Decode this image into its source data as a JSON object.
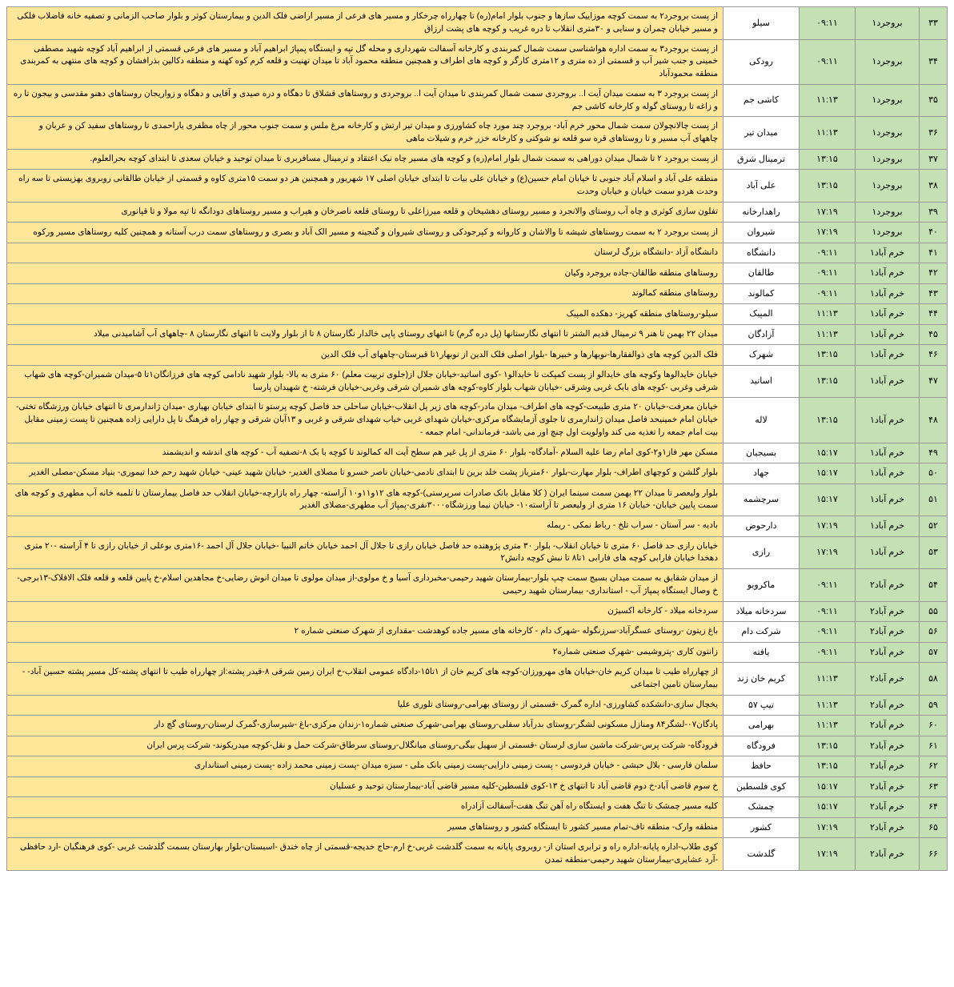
{
  "colors": {
    "green_bg": "#c5e0b4",
    "yellow_bg": "#ffe699",
    "white_bg": "#ffffff",
    "border": "#999999"
  },
  "rows": [
    {
      "num": "۳۳",
      "region": "بروجرد۱",
      "time": "۰۹:۱۱",
      "area": "سیلو",
      "desc": "از پست بروجرد۲ به سمت کوچه موزاییک سازها و جنوب بلوار امام(ره) تا چهارراه چرخکار و مسیر های فرعی از مسیر اراضی فلک الدین  و بیمارستان کوثر و بلوار صاحب الزمانی  و تصفیه خانه فاضلاب فلکی و مسیر خیابان چمران و سنایی و ۳۰متری انقلاب تا دره غریب و کوچه های پشت ارزاق"
    },
    {
      "num": "۳۴",
      "region": "بروجرد۱",
      "time": "۰۹:۱۱",
      "area": "رودکی",
      "desc": "از پست بروجرد۳ به سمت اداره هواشناسی سمت شمال کمربندی و کارخانه آسفالت شهرداری و محله گل تپه و ایستگاه پمپاژ ابراهیم آباد و مسیر های فرعی قسمتی از ابراهیم آباد کوچه شهید مصطفی خمینی و جنب شیر آب و قسمتی از ده متری و ۱۲متری کارگر و کوچه های اطراف و همچنین منطقه محمود آباد تا میدان تهنیت و قلعه کرم کوه کهنه و منطقه دکالین بذرافشان و کوچه های منتهی به کمربندی منطقه محمودآباد"
    },
    {
      "num": "۳۵",
      "region": "بروجرد۱",
      "time": "۱۱:۱۳",
      "area": "کاشی جم",
      "desc": "از پست بروجرد ۳ به سمت میدان آیت ا.. بروجردی سمت شمال کمربندی تا میدان آیت ا.. بروجردی و روستاهای قشلاق تا دهگاه و دره صیدی و آقایی و دهگاه و زواریجان  روستاهای دهنو مقدسی و بیجون تا ره و زاغه تا روستای گوله و کارخانه کاشی جم"
    },
    {
      "num": "۳۶",
      "region": "بروجرد۱",
      "time": "۱۱:۱۳",
      "area": "میدان تیر",
      "desc": "از پست چالانچولان سمت شمال محور خرم آباد- بروجرد چند مورد چاه کشاورزی و میدان تیر ارتش و کارخانه مرغ ملس و سمت جنوب محور از چاه مظفری یاراحمدی تا روستاهای سفید کن و عربان و چاههای آب مسیر و تا روستاهای قره سو قلعه نو شوکتی و کارخانه خزر خرم و شیلات ماهی"
    },
    {
      "num": "۳۷",
      "region": "بروجرد۱",
      "time": "۱۳:۱۵",
      "area": "ترمینال شرق",
      "desc": "از پست بروجرد ۲ تا شمال میدان دوراهی به سمت شمال بلوار امام(ره) و کوچه های مسیر چاه نیک اعتقاد و ترمینال مسافربری تا میدان توحید  و خیابان سعدی تا ابتدای کوچه بحرالعلوم."
    },
    {
      "num": "۳۸",
      "region": "بروجرد۱",
      "time": "۱۳:۱۵",
      "area": "علی آباد",
      "desc": "منطقه علی آباد و اسلام آباد جنوبی تا خیابان امام حسین(ع) و خیابان علی بیات  تا ابتدای خیابان اصلی ۱۷ شهریور و همچنین هر دو سمت ۱۵متری کاوه و قسمتی از خیابان طالقانی روبروی بهزیستی  تا سه راه وحدت هردو سمت خیابان و خیابان وحدت"
    },
    {
      "num": "۳۹",
      "region": "بروجرد۱",
      "time": "۱۷:۱۹",
      "area": "راهدارخانه",
      "desc": "تفلون سازی کوثری و چاه آب روستای والانجرد و مسیر روستای دهشیخان و قلعه میرزاعلی  تا روستای قلعه ناصرخان و هیراب و مسیر روستاهای دودانگه تا تپه مولا و تا قپانوری"
    },
    {
      "num": "۴۰",
      "region": "بروجرد۱",
      "time": "۱۷:۱۹",
      "area": "شیروان",
      "desc": "از پست بروجرد ۲ به سمت روستاهای شیشه تا والاشان و کاروانه و کپرجودکی و روستای شیروان و گنجینه و مسیر الک آباد و بصری و روستاهای سمت درب آستانه و همچنین کلیه روستاهای مسیر ورکوه"
    },
    {
      "num": "۴۱",
      "region": "خرم آباد۱",
      "time": "۰۹:۱۱",
      "area": "دانشگاه",
      "desc": "دانشگاه آزاد -دانشگاه بزرگ لرستان"
    },
    {
      "num": "۴۲",
      "region": "خرم آباد۱",
      "time": "۰۹:۱۱",
      "area": "طالقان",
      "desc": "روستاهای منطقه طالقان-جاده بروجرد وکیان"
    },
    {
      "num": "۴۳",
      "region": "خرم آباد۱",
      "time": "۰۹:۱۱",
      "area": "کمالوند",
      "desc": "روستاهای منطقه کمالوند"
    },
    {
      "num": "۴۴",
      "region": "خرم آباد۱",
      "time": "۱۱:۱۳",
      "area": "المپیک",
      "desc": "سیلو-روستاهای منطقه کهریز- دهکده المپیک"
    },
    {
      "num": "۴۵",
      "region": "خرم آباد۱",
      "time": "۱۱:۱۳",
      "area": "آزادگان",
      "desc": "میدان ۲۲ بهمن تا هنر ۹ ترمینال قدیم الشتر تا انتهای نگارستانها (پل دره گرم) تا انتهای روستای پاپی خالدار نگارستان ۸ تا از بلوار ولایت تا انتهای نگارستان ۸  -چاههای آب آشامیدنی میلاد"
    },
    {
      "num": "۴۶",
      "region": "خرم آباد۱",
      "time": "۱۳:۱۵",
      "area": "شهرک",
      "desc": "فلک الدین کوچه های ذوالفقارها-نوبهارها و خبیرها -بلوار اصلی فلک الدین از نوبهار۱تا قبرستان-چاههای آب فلک الدین"
    },
    {
      "num": "۴۷",
      "region": "خرم آباد۱",
      "time": "۱۳:۱۵",
      "area": "اساتید",
      "desc": "خیابان خایدالوها وکوچه های خایدالو از پست کمپکت تا خایدالو۱ -کوی اساتید-خیابان جلال از(جلوی تربیت معلم) ۶۰ متری به بالا- بلوار شهید نادامی کوچه های فرزانگان۱تا ۵-میدان شمیران-کوچه های شهاب شرقی وغربی -کوچه های بابک غربی وشرقی -خیابان شهاب بلوار کاوه-کوچه های شمیران شرقی وغربی-خیابان فرشته- خ شهیدان پارسا"
    },
    {
      "num": "۴۸",
      "region": "خرم آباد۱",
      "time": "۱۳:۱۵",
      "area": "لاله",
      "desc": "خیابان معرفت-خیابان ۲۰ متری طبیعت-کوچه های اطراف- میدان مادر-کوچه های زیر پل انقلاب-خیابان ساحلی حد فاصل کوچه پرستو تا ابتدای خیابان بهیاری -میدان ژاندارمری تا انتهای خیابان ورزشگاه تختی-خیابان امام خمینیحد فاصل میدان ژاندارمری تا جلوی آزمایشگاه مرکزی-خیابان شهدای غربی خیاب شهدای شرقی و غربی و ۱۳آبان شرقی و چهار راه فرهنگ تا پل دارایی زاده همچنین تا پست زمینی مقابل بیت امام جمعه را تغذیه می کند واولویت اول چنچ اور می باشد- فرماندانی- امام جمعه -"
    },
    {
      "num": "۴۹",
      "region": "خرم آباد۱",
      "time": "۱۵:۱۷",
      "area": "بسیجیان",
      "desc": "مسکن مهر فاز۱و۲-کوی امام رضا علیه السلام -آمادگاه- بلوار ۶۰ متری از پل غیر هم سطح آیت اله کمالوند تا کوچه با بک ۸-تصفیه آب - کوچه های اندشه و اندیشمند"
    },
    {
      "num": "۵۰",
      "region": "خرم آباد۱",
      "time": "۱۵:۱۷",
      "area": "جهاد",
      "desc": "بلوار گلشن و کوچهای اطراف- بلوار مهارت-بلوار ۶۰متریاز پشت خلد برین تا ابتدای نادمی-خیابان ناصر خسرو تا مصلای الغدیر- خیابان شهید عینی- خیابان شهید رحم خدا تیموری- بنیاد مسکن-مصلی الغدیر"
    },
    {
      "num": "۵۱",
      "region": "خرم آباد۱",
      "time": "۱۵:۱۷",
      "area": "سرچشمه",
      "desc": "بلوار ولیعصر تا میدان ۲۲ بهمن سمت سینما ایران ( کلا مقابل بانک صادرات سرپرستی)-کوچه های ۱۲و۱۱و۱۰ آراسته- چهار راه بازارچه-خیابان انقلاب حد فاصل بیمارستان تا تلمبه خانه آب مطهری و کوچه های سمت پایین خیابان- خیابان ۱۶ متری از ولیعصر تا آراسته۱۰- خیابان نیما ورزشگاه۳۰۰۰نفری-پمپاژ آب مطهری-مصلای الغدیر"
    },
    {
      "num": "۵۲",
      "region": "خرم آباد۱",
      "time": "۱۷:۱۹",
      "area": "دارحوض",
      "desc": "بادیه - سر آستان - سراب تلخ - رباط نمکی - ریمله"
    },
    {
      "num": "۵۳",
      "region": "خرم آباد۱",
      "time": "۱۷:۱۹",
      "area": "رازی",
      "desc": "خیابان رازی حد فاصل ۶۰ متری تا خیابان انقلاب- بلوار ۳۰ متری پژوهنده حد فاصل خیابان رازی تا جلال آل احمد خیابان خاتم النبیا -خیابان جلال آل احمد -۱۶متری بوعلی از خیابان رازی تا ۴ آراسته -۲۰ متری دهخدا خیابان فارابی کوچه های فارابی ۱تا۸ تا نبش کوچه دانش۲"
    },
    {
      "num": "۵۴",
      "region": "خرم آباد۲",
      "time": "۰۹:۱۱",
      "area": "ماکرویو",
      "desc": "از میدان شقایق به سمت میدان بسیج سمت چپ بلوار-بیمارستان شهید رحیمی-مخبرداری آسیا و خ مولوی-از میدان مولوی تا میدان انوش رضایی-خ مجاهدین اسلام-خ پایین قلعه و قلعه فلک الافلاک-۱۳برجی-خ وصال ایستگاه  پمپاژ آب - استانداری- بیمارستان شهید رحیمی"
    },
    {
      "num": "۵۵",
      "region": "خرم آباد۲",
      "time": "۰۹:۱۱",
      "area": "سردخانه میلاد",
      "desc": "سردخانه میلاد - کارخانه اکسیژن"
    },
    {
      "num": "۵۶",
      "region": "خرم آباد۲",
      "time": "۰۹:۱۱",
      "area": "شرکت دام",
      "desc": "باغ زیتون -روستای عسگرآباد-سرزنگوله -شهرک دام - کارخانه های مسیر جاده کوهدشت -مقداری از شهرک صنعتی شماره ۲"
    },
    {
      "num": "۵۷",
      "region": "خرم آباد۲",
      "time": "۰۹:۱۱",
      "area": "یافته",
      "desc": "زانتون کاری -پتروشیمی -شهرک صنعتی شماره۲"
    },
    {
      "num": "۵۸",
      "region": "خرم آباد۲",
      "time": "۱۱:۱۳",
      "area": "کریم خان زند",
      "desc": "از چهارراه طیب تا میدان کریم خان-خیابان های مهرورزان-کوچه های کریم خان از ۱تا۱۵-دادگاه عمومی انقلاب-خ ایران زمین شرقی ۸-قیدر پشته:از چهارراه طیب تا انتهای پشته-کل مسیر پشته حسین آباد-  - بیمارستان تامین اجتماعی"
    },
    {
      "num": "۵۹",
      "region": "خرم آباد۲",
      "time": "۱۱:۱۳",
      "area": "تیپ ۵۷",
      "desc": "یخچال سازی-دانشکده کشاورزی- اداره گمرک -قسمتی از روستای بهرامی-روستای تلوری علیا"
    },
    {
      "num": "۶۰",
      "region": "خرم آباد۲",
      "time": "۱۱:۱۳",
      "area": "بهرامی",
      "desc": "پادگان۰۷-لشگر۸۴ ومنازل مسکونی لشگر-روستای بدرآباد سفلی-روستای بهرامی-شهرک صنعتی شماره۱-زندان مرکزی-باغ  -شیرسازی-گمرک لرستان-روستای گچ دار"
    },
    {
      "num": "۶۱",
      "region": "خرم آباد۲",
      "time": "۱۳:۱۵",
      "area": "فرودگاه",
      "desc": "فرودگاه- شرکت پرس-شرکت ماشین سازی لرستان -قسمتی از سهیل بیگی-روستای میانگلال-روستای سرطاق-شرکت حمل و نقل-کوچه میدریکوند- شرکت پرس ایران"
    },
    {
      "num": "۶۲",
      "region": "خرم آباد۲",
      "time": "۱۳:۱۵",
      "area": "حافظ",
      "desc": "سلمان فارسی - بلال حبشی - خیابان فردوسی - پست زمینی دارایی-پست زمینی بانک ملی - سبزه میدان -پست زمینی محمد زاده -پست زمینی استانداری"
    },
    {
      "num": "۶۳",
      "region": "خرم آباد۲",
      "time": "۱۵:۱۷",
      "area": "کوی فلسطین",
      "desc": "خ سوم قاضی آباد-خ دوم قاضی آباد تا انتهای خ ۱۳-کوی فلسطین-کلیه مسیر قاضی آباد-بیمارستان توحید و عسلیان"
    },
    {
      "num": "۶۴",
      "region": "خرم آباد۲",
      "time": "۱۵:۱۷",
      "area": "چمشک",
      "desc": "کلیه مسیر چمشک تا تنگ هفت و ایستگاه راه آهن تنگ هفت-آسفالت آزادراه"
    },
    {
      "num": "۶۵",
      "region": "خرم آباد۲",
      "time": "۱۷:۱۹",
      "area": "کشور",
      "desc": "منطقه وارک- منطقه تاف-تمام مسیر کشور تا ایستگاه کشور و روستاهای مسیر"
    },
    {
      "num": "۶۶",
      "region": "خرم آباد۲",
      "time": "۱۷:۱۹",
      "area": "گلدشت",
      "desc": "کوی طلاب-اداره پایانه-اداره راه و ترابری استان از- روبروی پایانه به سمت گلدشت غربی-خ ارم-حاج خدیجه-قسمتی از چاه خندق -اسبستان-بلوار بهارستان بسمت گلدشت غربی -کوی فرهنگیان -ارد حافظی -آرد عشایری-بیمارستان شهید رحیمی-منطقه تمدن"
    }
  ]
}
